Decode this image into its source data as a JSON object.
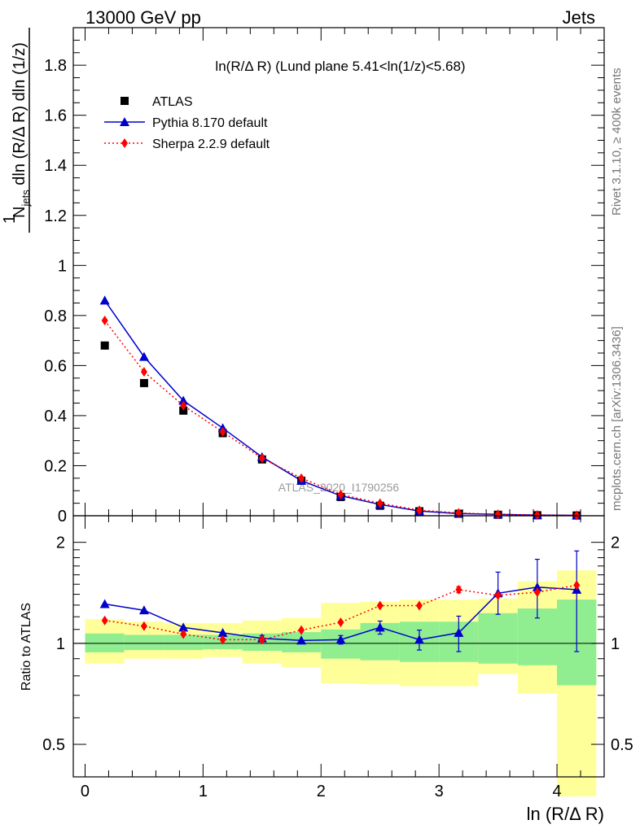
{
  "header": {
    "energy_label": "13000 GeV pp",
    "process_label": "Jets"
  },
  "side_labels": {
    "rivet": "Rivet 3.1.10, ≥ 400k events",
    "mcplots": "mcplots.cern.ch [arXiv:1306.3436]"
  },
  "watermark": "ATLAS_2020_I1790256",
  "chart_data": [
    {
      "type": "scatter",
      "title": "ln(R/Δ R) (Lund plane 5.41<ln(1/z)<5.68)",
      "xlabel": "ln (R/Δ R)",
      "ylabel": "1/N_jets d²N_emissions/dln(R/Δ R) dln(1/z)",
      "ylim": [
        0,
        1.95
      ],
      "xlim": [
        -0.1,
        4.4
      ],
      "y_ticks": [
        "0",
        "0.2",
        "0.4",
        "0.6",
        "0.8",
        "1",
        "1.2",
        "1.4",
        "1.6",
        "1.8"
      ],
      "legend_placement": "top-left",
      "x": [
        0.167,
        0.5,
        0.833,
        1.167,
        1.5,
        1.833,
        2.167,
        2.5,
        2.833,
        3.167,
        3.5,
        3.833,
        4.167
      ],
      "series": [
        {
          "name": "ATLAS",
          "color": "#000000",
          "marker": "square",
          "values": [
            0.68,
            0.53,
            0.42,
            0.33,
            0.225,
            0.14,
            0.075,
            0.04,
            0.018,
            0.008,
            0.004,
            0.002,
            0.001
          ]
        },
        {
          "name": "Pythia 8.170 default",
          "color": "#0000cc",
          "marker": "triangle",
          "line": "solid",
          "values": [
            0.86,
            0.635,
            0.46,
            0.35,
            0.235,
            0.14,
            0.08,
            0.045,
            0.019,
            0.0085,
            0.0055,
            0.003,
            0.0015
          ]
        },
        {
          "name": "Sherpa 2.2.9 default",
          "color": "#ff0000",
          "marker": "diamond",
          "line": "dotted",
          "values": [
            0.78,
            0.575,
            0.44,
            0.335,
            0.23,
            0.15,
            0.085,
            0.05,
            0.022,
            0.0115,
            0.0055,
            0.003,
            0.0015
          ]
        }
      ]
    },
    {
      "type": "scatter",
      "title": "",
      "xlabel": "ln (R/Δ R)",
      "ylabel": "Ratio to ATLAS",
      "y_scale": "log",
      "ylim": [
        0.4,
        2.4
      ],
      "xlim": [
        -0.1,
        4.4
      ],
      "x_ticks": [
        "0",
        "1",
        "2",
        "3",
        "4"
      ],
      "y_ticks": [
        "0.5",
        "1",
        "2"
      ],
      "bins": [
        [
          0,
          0.333
        ],
        [
          0.333,
          0.667
        ],
        [
          0.667,
          1.0
        ],
        [
          1.0,
          1.333
        ],
        [
          1.333,
          1.667
        ],
        [
          1.667,
          2.0
        ],
        [
          2.0,
          2.333
        ],
        [
          2.333,
          2.667
        ],
        [
          2.667,
          3.0
        ],
        [
          3.0,
          3.333
        ],
        [
          3.333,
          3.667
        ],
        [
          3.667,
          4.0
        ],
        [
          4.0,
          4.333
        ]
      ],
      "bands": [
        {
          "name": "stat",
          "color": "#90ee90",
          "low": [
            0.94,
            0.955,
            0.955,
            0.96,
            0.95,
            0.94,
            0.9,
            0.89,
            0.88,
            0.88,
            0.87,
            0.86,
            0.75
          ],
          "high": [
            1.07,
            1.06,
            1.06,
            1.06,
            1.07,
            1.08,
            1.1,
            1.15,
            1.16,
            1.16,
            1.23,
            1.27,
            1.35
          ]
        },
        {
          "name": "total",
          "color": "#ffff99",
          "low": [
            0.87,
            0.9,
            0.9,
            0.91,
            0.87,
            0.85,
            0.76,
            0.755,
            0.745,
            0.745,
            0.81,
            0.71,
            0.35
          ]
        },
        {
          "name": "total_high",
          "color": "#ffff99",
          "high": [
            1.18,
            1.16,
            1.15,
            1.15,
            1.17,
            1.19,
            1.32,
            1.33,
            1.35,
            1.35,
            1.36,
            1.53,
            1.65
          ]
        }
      ],
      "series": [
        {
          "name": "Pythia 8.170 default",
          "color": "#0000cc",
          "marker": "triangle",
          "line": "solid",
          "values": [
            1.31,
            1.255,
            1.115,
            1.075,
            1.035,
            1.02,
            1.025,
            1.115,
            1.025,
            1.075,
            1.41,
            1.47,
            1.445
          ],
          "err_low": [
            0.0,
            0.0,
            0.0,
            0.0,
            0.02,
            0.0,
            0.03,
            0.05,
            0.07,
            0.13,
            0.19,
            0.28,
            0.5
          ],
          "err_high": [
            0.0,
            0.0,
            0.0,
            0.0,
            0.02,
            0.0,
            0.03,
            0.05,
            0.07,
            0.13,
            0.22,
            0.31,
            0.44
          ]
        },
        {
          "name": "Sherpa 2.2.9 default",
          "color": "#ff0000",
          "marker": "diamond",
          "line": "dotted",
          "values": [
            1.17,
            1.125,
            1.065,
            1.025,
            1.025,
            1.095,
            1.155,
            1.295,
            1.295,
            1.445,
            1.39,
            1.42,
            1.49
          ],
          "err_low": [
            0.0,
            0.0,
            0.0,
            0.0,
            0.0,
            0.0,
            0.0,
            0.0,
            0.0,
            0.03,
            0.0,
            0.0,
            0.0
          ],
          "err_high": [
            0.0,
            0.0,
            0.0,
            0.0,
            0.0,
            0.0,
            0.0,
            0.0,
            0.0,
            0.03,
            0.0,
            0.0,
            0.0
          ]
        }
      ]
    }
  ]
}
